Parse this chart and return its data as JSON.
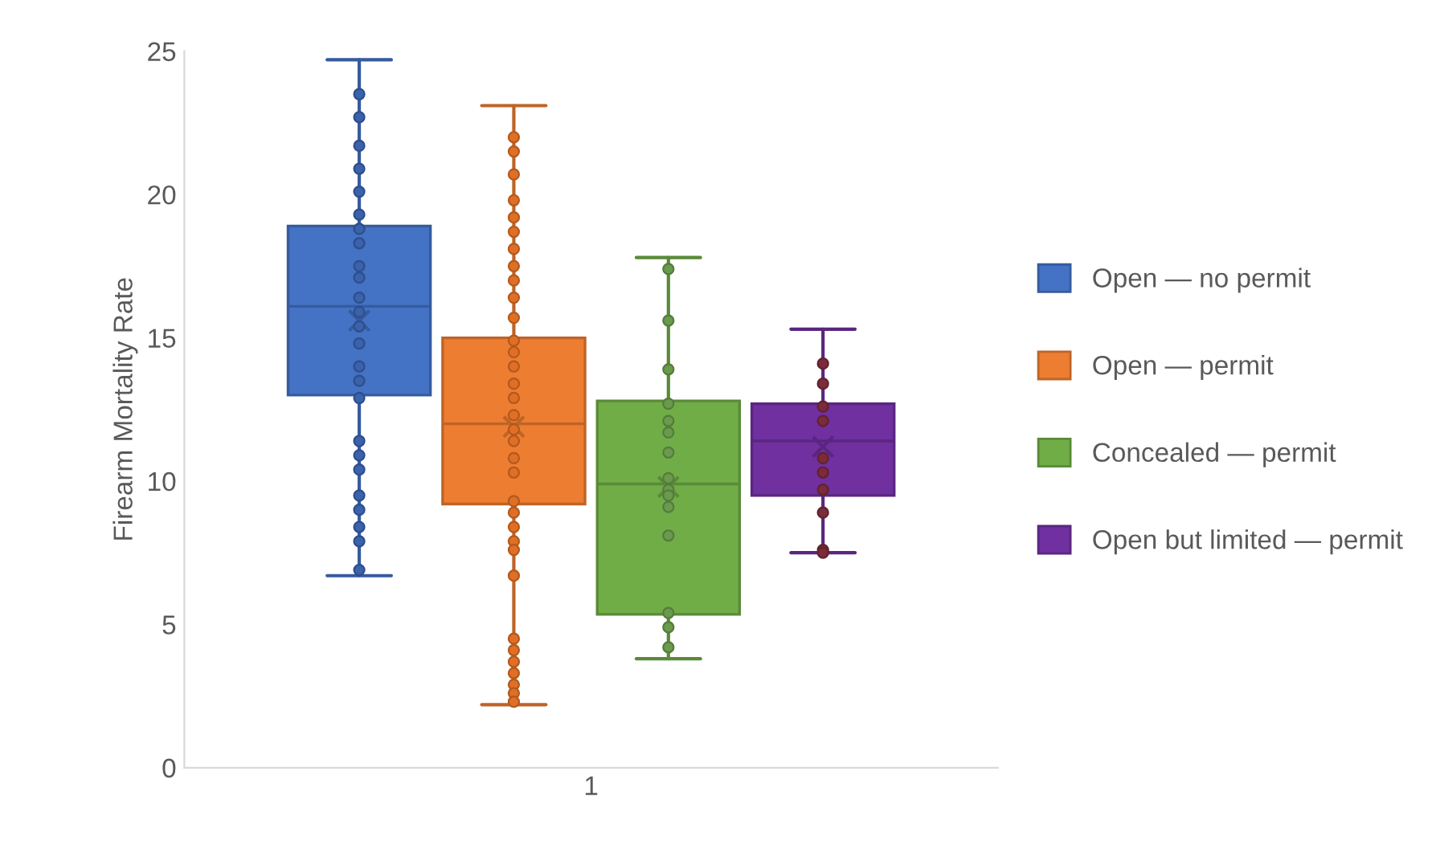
{
  "chart_data": {
    "type": "box",
    "ylabel": "Firearm Mortality Rate",
    "categories": [
      "1"
    ],
    "ylim": [
      0,
      25
    ],
    "yticks": [
      0,
      5,
      10,
      15,
      20,
      25
    ],
    "grid": false,
    "legend": "right",
    "series": [
      {
        "name": "Open — no permit",
        "color": "#4472c4",
        "boxes": [
          {
            "low": 6.7,
            "q1": 13.0,
            "median": 16.1,
            "q3": 18.9,
            "high": 24.7,
            "mean": 15.6
          }
        ]
      },
      {
        "name": "Open — permit",
        "color": "#ed7d31",
        "boxes": [
          {
            "low": 2.2,
            "q1": 9.2,
            "median": 12.0,
            "q3": 15.0,
            "high": 23.1,
            "mean": 11.9
          }
        ]
      },
      {
        "name": "Concealed — permit",
        "color": "#70ad47",
        "boxes": [
          {
            "low": 3.8,
            "q1": 5.35,
            "median": 9.9,
            "q3": 12.8,
            "high": 17.8,
            "mean": 9.8
          }
        ]
      },
      {
        "name": "Open but limited — permit",
        "color": "#7030a0",
        "boxes": [
          {
            "low": 7.5,
            "q1": 9.5,
            "median": 11.4,
            "q3": 12.7,
            "high": 15.3,
            "mean": 11.2
          }
        ]
      },
      {
        "type": "scatter",
        "color": "#3a62ad",
        "x": [
          "1",
          "1",
          "1",
          "1",
          "1",
          "1",
          "1",
          "1",
          "1",
          "1",
          "1",
          "1",
          "1",
          "1",
          "1",
          "1",
          "1",
          "1",
          "1",
          "1",
          "1",
          "1",
          "1",
          "1",
          "1"
        ],
        "values": [
          23.5,
          22.7,
          21.7,
          20.9,
          20.1,
          19.3,
          18.8,
          18.3,
          17.5,
          17.1,
          16.4,
          15.9,
          15.4,
          14.8,
          14.0,
          13.5,
          12.9,
          11.4,
          10.9,
          10.4,
          9.5,
          9.0,
          8.4,
          7.9,
          6.9
        ]
      },
      {
        "type": "scatter",
        "color": "#e06f25",
        "x": [
          "1",
          "1",
          "1",
          "1",
          "1",
          "1",
          "1",
          "1",
          "1",
          "1",
          "1",
          "1",
          "1",
          "1",
          "1",
          "1",
          "1",
          "1",
          "1",
          "1",
          "1",
          "1",
          "1",
          "1",
          "1",
          "1",
          "1",
          "1",
          "1",
          "1",
          "1",
          "1",
          "1",
          "1"
        ],
        "values": [
          22.0,
          21.5,
          20.7,
          19.8,
          19.2,
          18.7,
          18.1,
          17.5,
          17.0,
          16.4,
          15.7,
          14.9,
          14.5,
          14.0,
          13.4,
          12.9,
          12.3,
          11.8,
          11.4,
          10.8,
          10.3,
          9.3,
          8.9,
          8.4,
          7.9,
          7.6,
          6.7,
          4.5,
          4.1,
          3.7,
          3.3,
          2.9,
          2.6,
          2.3
        ]
      },
      {
        "type": "scatter",
        "color": "#6a9a4c",
        "x": [
          "1",
          "1",
          "1",
          "1",
          "1",
          "1",
          "1",
          "1",
          "1",
          "1",
          "1",
          "1",
          "1",
          "1",
          "1"
        ],
        "values": [
          17.4,
          15.6,
          13.9,
          12.7,
          12.1,
          11.7,
          11.0,
          10.1,
          9.7,
          9.5,
          9.1,
          8.1,
          5.4,
          4.9,
          4.2
        ]
      },
      {
        "type": "scatter",
        "color": "#7b2b3a",
        "x": [
          "1",
          "1",
          "1",
          "1",
          "1",
          "1",
          "1",
          "1",
          "1",
          "1"
        ],
        "values": [
          14.1,
          13.4,
          12.6,
          12.1,
          10.8,
          10.3,
          9.7,
          8.9,
          7.6,
          7.5
        ]
      }
    ]
  }
}
